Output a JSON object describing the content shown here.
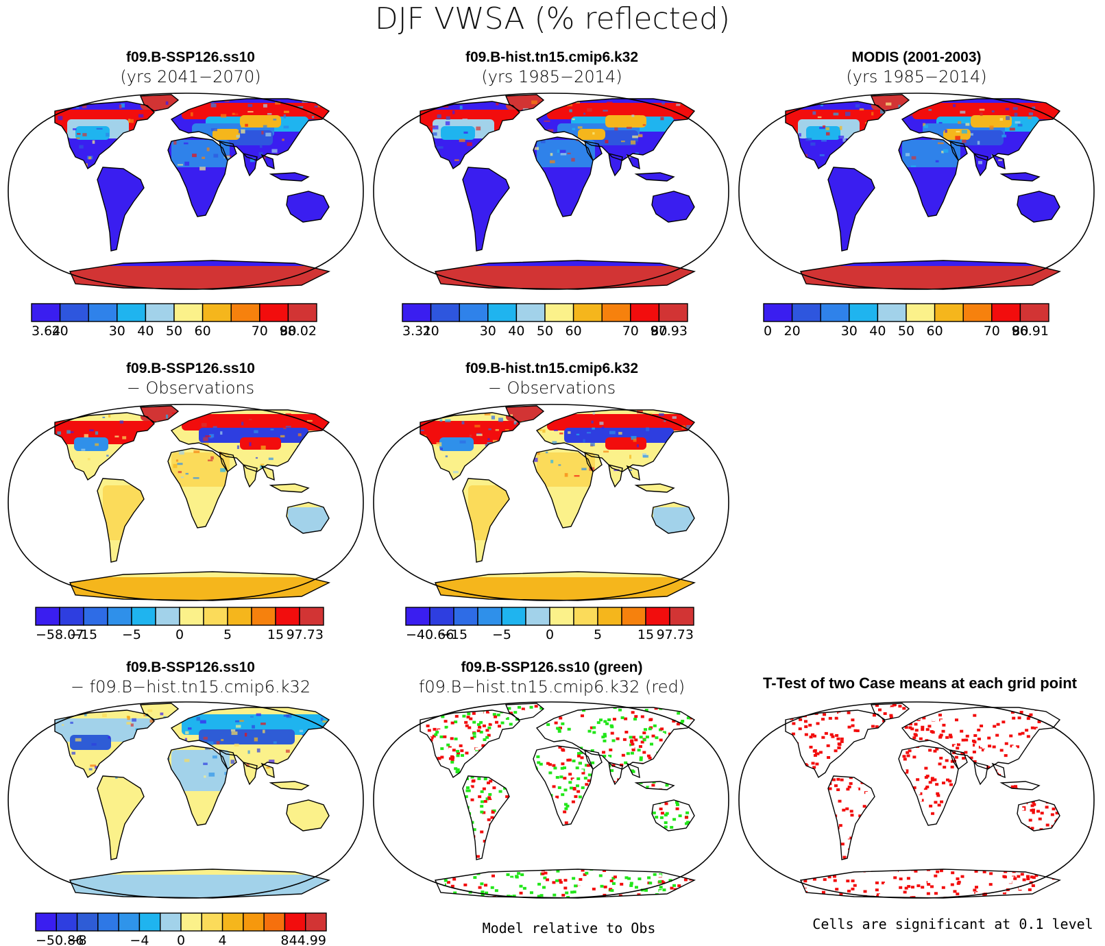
{
  "title": "DJF VWSA (% reflected)",
  "colors": {
    "abs_scale": [
      "#3a1ef0",
      "#2e56de",
      "#2f82ea",
      "#1fb4ef",
      "#a2d2ea",
      "#fbf18a",
      "#f5b61c",
      "#f6810d",
      "#f20d0d",
      "#d23434"
    ],
    "diff_scale": [
      "#3a1ef0",
      "#2e3ee0",
      "#2e6ce6",
      "#2f90ea",
      "#1fb4ef",
      "#a2d2ea",
      "#fbf18a",
      "#fbdb5a",
      "#f5b61c",
      "#f6810d",
      "#f20d0d",
      "#d23434"
    ],
    "diff12_scale": [
      "#3a1ef0",
      "#2e3ee0",
      "#2e5cd6",
      "#2e78e6",
      "#2f94ea",
      "#1fb4ef",
      "#a2d2ea",
      "#fbf18a",
      "#fbdb5a",
      "#f5b61c",
      "#f6980d",
      "#f6700d",
      "#f20d0d",
      "#d23434"
    ],
    "land_fill": "#3d2ee8",
    "green": "#22e61a",
    "red": "#f20d0d"
  },
  "panels": [
    {
      "title": "f09.B-SSP126.ss10",
      "subtitle": "(yrs 2041−2070)",
      "map": "abs",
      "colorbar": {
        "labels": [
          "3.64",
          "20",
          "30",
          "40",
          "50",
          "60",
          "70",
          "80",
          "98.02"
        ]
      }
    },
    {
      "title": "f09.B-hist.tn15.cmip6.k32",
      "subtitle": "(yrs 1985−2014)",
      "map": "abs",
      "colorbar": {
        "labels": [
          "3.31",
          "20",
          "30",
          "40",
          "50",
          "60",
          "70",
          "80",
          "97.93"
        ]
      }
    },
    {
      "title": "MODIS (2001-2003)",
      "subtitle": "(yrs 1985−2014)",
      "map": "abs",
      "colorbar": {
        "labels": [
          "0",
          "20",
          "30",
          "40",
          "50",
          "60",
          "70",
          "80",
          "96.91"
        ]
      }
    },
    {
      "title": "f09.B-SSP126.ss10",
      "subtitle": "− Observations",
      "map": "diff_obs",
      "colorbar": {
        "labels": [
          "−58.07",
          "−15",
          "−5",
          "0",
          "5",
          "15",
          "97.73"
        ]
      }
    },
    {
      "title": "f09.B-hist.tn15.cmip6.k32",
      "subtitle": "− Observations",
      "map": "diff_obs",
      "colorbar": {
        "labels": [
          "−40.66",
          "−15",
          "−5",
          "0",
          "5",
          "15",
          "97.73"
        ]
      }
    },
    {
      "title": "f09.B-SSP126.ss10",
      "subtitle": "− f09.B−hist.tn15.cmip6.k32",
      "map": "diff_case",
      "colorbar": {
        "labels": [
          "−50.86",
          "−8",
          "−4",
          "0",
          "4",
          "8",
          "44.99"
        ]
      }
    },
    {
      "title": "f09.B-SSP126.ss10 (green)",
      "subtitle": "f09.B−hist.tn15.cmip6.k32 (red)",
      "map": "green_red"
    },
    {
      "title": "T-Test of two Case means at each grid point",
      "subtitle": "",
      "map": "ttest"
    }
  ],
  "footnotes": {
    "model_relative": "Model relative to Obs",
    "significance": "Cells are significant at 0.1 level"
  }
}
